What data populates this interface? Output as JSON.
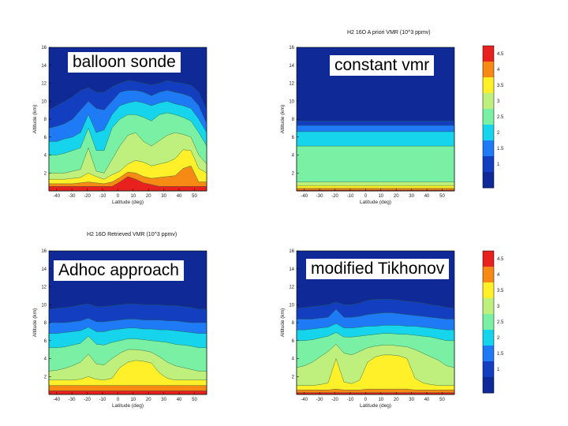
{
  "chart_data": [
    {
      "type": "heatmap",
      "id": "p1",
      "label": "balloon sonde",
      "title": "",
      "xlabel": "Latitude (deg)",
      "ylabel": "Altitude (km)",
      "xlim": [
        -45,
        58
      ],
      "ylim": [
        0,
        16
      ],
      "xticks": [
        -40,
        -30,
        -20,
        -10,
        0,
        10,
        20,
        30,
        40,
        50
      ],
      "yticks": [
        2,
        4,
        6,
        8,
        10,
        12,
        14,
        16
      ],
      "levels": [
        {
          "name": "4.5",
          "alt": [
            0.5,
            0.5,
            0.5,
            0.5,
            0.5,
            0.5,
            0.5,
            0.5,
            0.5,
            1.0,
            1.6,
            1.3,
            0.9,
            0.7,
            0.5,
            0.5,
            0.5,
            0.5,
            0.5,
            0.5,
            0.5
          ]
        },
        {
          "name": "4",
          "alt": [
            0.8,
            0.8,
            0.8,
            0.8,
            0.9,
            1.0,
            0.9,
            0.8,
            1.0,
            1.5,
            2.1,
            2.0,
            1.6,
            1.4,
            1.5,
            1.6,
            1.7,
            2.5,
            2.8,
            1.0,
            1.0
          ]
        },
        {
          "name": "3.5",
          "alt": [
            1.3,
            1.3,
            1.3,
            1.4,
            1.5,
            2.0,
            1.6,
            1.3,
            1.8,
            2.2,
            3.0,
            3.4,
            3.2,
            2.8,
            3.0,
            3.2,
            3.6,
            4.6,
            4.5,
            2.5,
            2.0
          ]
        },
        {
          "name": "3",
          "alt": [
            2.0,
            2.0,
            2.0,
            2.2,
            2.4,
            4.8,
            2.2,
            2.0,
            3.5,
            5.0,
            6.2,
            6.5,
            5.5,
            5.0,
            5.6,
            6.2,
            6.5,
            6.3,
            6.0,
            4.0,
            3.0
          ]
        },
        {
          "name": "2.5",
          "alt": [
            4.0,
            4.0,
            4.2,
            4.5,
            4.8,
            7.0,
            4.5,
            4.5,
            7.0,
            8.0,
            8.5,
            8.5,
            8.2,
            7.8,
            8.5,
            8.7,
            8.5,
            8.2,
            7.8,
            6.5,
            5.0
          ]
        },
        {
          "name": "2",
          "alt": [
            5.5,
            5.5,
            5.8,
            6.0,
            6.5,
            8.5,
            6.5,
            6.8,
            8.5,
            9.5,
            9.8,
            10.0,
            9.8,
            9.5,
            9.8,
            10.0,
            9.7,
            9.5,
            9.2,
            8.0,
            6.5
          ]
        },
        {
          "name": "1.5",
          "alt": [
            7.0,
            7.2,
            7.5,
            8.0,
            9.0,
            10.0,
            9.2,
            9.0,
            10.0,
            11.0,
            11.2,
            11.2,
            11.0,
            10.6,
            11.0,
            11.2,
            11.0,
            10.8,
            10.5,
            9.5,
            7.5
          ]
        },
        {
          "name": "1",
          "alt": [
            9.0,
            9.5,
            10.0,
            10.5,
            11.2,
            11.5,
            11.0,
            11.0,
            11.6,
            12.0,
            12.3,
            12.2,
            12.0,
            11.8,
            12.0,
            12.3,
            12.1,
            12.0,
            11.8,
            11.0,
            9.0
          ]
        }
      ]
    },
    {
      "type": "heatmap",
      "id": "p2",
      "label": "constant vmr",
      "title": "H2 16O A priori VMR (10^3 ppmv)",
      "xlabel": "Latitude (deg)",
      "ylabel": "Altitude (km)",
      "xlim": [
        -45,
        58
      ],
      "ylim": [
        0,
        16
      ],
      "xticks": [
        -40,
        -30,
        -20,
        -10,
        0,
        10,
        20,
        30,
        40,
        50
      ],
      "yticks": [
        2,
        4,
        6,
        8,
        10,
        12,
        14,
        16
      ],
      "colorbar": {
        "ticks": [
          "4.5",
          "4",
          "3.5",
          "3",
          "2.5",
          "2",
          "1.5",
          "1"
        ],
        "colors": [
          "#e8201e",
          "#f78a14",
          "#fff02a",
          "#bff07e",
          "#7af0a4",
          "#16d4ec",
          "#1f7bf5",
          "#143ec0",
          "#0f2a96"
        ]
      },
      "levels": [
        {
          "name": "4.5",
          "alt": [
            0.1,
            0.1,
            0.1,
            0.1,
            0.1,
            0.1,
            0.1,
            0.1,
            0.1,
            0.1,
            0.1,
            0.1,
            0.1,
            0.1,
            0.1,
            0.1,
            0.1,
            0.1,
            0.1,
            0.1,
            0.1
          ]
        },
        {
          "name": "4",
          "alt": [
            0.3,
            0.3,
            0.3,
            0.3,
            0.3,
            0.3,
            0.3,
            0.3,
            0.3,
            0.3,
            0.3,
            0.3,
            0.3,
            0.3,
            0.3,
            0.3,
            0.3,
            0.3,
            0.3,
            0.3,
            0.3
          ]
        },
        {
          "name": "3.5",
          "alt": [
            0.6,
            0.6,
            0.6,
            0.6,
            0.6,
            0.6,
            0.6,
            0.6,
            0.6,
            0.6,
            0.6,
            0.6,
            0.6,
            0.6,
            0.6,
            0.6,
            0.6,
            0.6,
            0.6,
            0.6,
            0.6
          ]
        },
        {
          "name": "3",
          "alt": [
            1.0,
            1.0,
            1.0,
            1.0,
            1.0,
            1.0,
            1.0,
            1.0,
            1.0,
            1.0,
            1.0,
            1.0,
            1.0,
            1.0,
            1.0,
            1.0,
            1.0,
            1.0,
            1.0,
            1.0,
            1.0
          ]
        },
        {
          "name": "2.5",
          "alt": [
            5.0,
            5.0,
            5.0,
            5.0,
            5.0,
            5.0,
            5.0,
            5.0,
            5.0,
            5.0,
            5.0,
            5.0,
            5.0,
            5.0,
            5.0,
            5.0,
            5.0,
            5.0,
            5.0,
            5.0,
            5.0
          ]
        },
        {
          "name": "2",
          "alt": [
            6.6,
            6.6,
            6.6,
            6.6,
            6.6,
            6.6,
            6.6,
            6.6,
            6.6,
            6.6,
            6.6,
            6.6,
            6.6,
            6.6,
            6.6,
            6.6,
            6.6,
            6.6,
            6.6,
            6.6,
            6.6
          ]
        },
        {
          "name": "1.5",
          "alt": [
            7.3,
            7.3,
            7.3,
            7.3,
            7.3,
            7.3,
            7.3,
            7.3,
            7.3,
            7.3,
            7.3,
            7.3,
            7.3,
            7.3,
            7.3,
            7.3,
            7.3,
            7.3,
            7.3,
            7.3,
            7.3
          ]
        },
        {
          "name": "1",
          "alt": [
            7.8,
            7.8,
            7.8,
            7.8,
            7.8,
            7.8,
            7.8,
            7.8,
            7.8,
            7.8,
            7.8,
            7.8,
            7.8,
            7.8,
            7.8,
            7.8,
            7.8,
            7.8,
            7.8,
            7.8,
            7.8
          ]
        }
      ]
    },
    {
      "type": "heatmap",
      "id": "p3",
      "label": "Adhoc approach",
      "title": "H2 16O Retrieved VMR (10^3 ppmv)",
      "xlabel": "Latitude (deg)",
      "ylabel": "Altitude (km)",
      "xlim": [
        -45,
        58
      ],
      "ylim": [
        0,
        16
      ],
      "xticks": [
        -40,
        -30,
        -20,
        -10,
        0,
        10,
        20,
        30,
        40,
        50
      ],
      "yticks": [
        2,
        4,
        6,
        8,
        10,
        12,
        14,
        16
      ],
      "levels": [
        {
          "name": "4.5",
          "alt": [
            0.4,
            0.4,
            0.4,
            0.4,
            0.4,
            0.4,
            0.4,
            0.4,
            0.4,
            0.4,
            0.4,
            0.4,
            0.4,
            0.4,
            0.4,
            0.4,
            0.4,
            0.4,
            0.4,
            0.4,
            0.4
          ]
        },
        {
          "name": "4",
          "alt": [
            1.0,
            1.0,
            1.0,
            1.0,
            1.0,
            1.0,
            1.0,
            1.0,
            1.0,
            1.0,
            1.0,
            1.0,
            1.0,
            1.0,
            1.0,
            1.0,
            1.0,
            1.0,
            1.0,
            1.0,
            1.0
          ]
        },
        {
          "name": "3.5",
          "alt": [
            1.6,
            1.6,
            1.6,
            1.6,
            1.7,
            2.0,
            1.7,
            1.6,
            1.8,
            3.0,
            3.6,
            3.8,
            3.7,
            3.5,
            2.4,
            1.8,
            1.6,
            1.6,
            1.6,
            1.6,
            1.6
          ]
        },
        {
          "name": "3",
          "alt": [
            2.6,
            2.7,
            2.9,
            3.2,
            3.6,
            4.5,
            3.4,
            3.3,
            4.0,
            4.6,
            5.0,
            5.0,
            4.9,
            4.7,
            4.2,
            3.6,
            3.2,
            3.0,
            2.8,
            2.6,
            2.6
          ]
        },
        {
          "name": "2.5",
          "alt": [
            5.2,
            5.2,
            5.3,
            5.5,
            5.7,
            6.5,
            5.6,
            5.5,
            5.8,
            6.0,
            6.2,
            6.2,
            6.1,
            6.0,
            5.9,
            5.8,
            5.6,
            5.5,
            5.4,
            5.2,
            5.2
          ]
        },
        {
          "name": "2",
          "alt": [
            6.8,
            6.8,
            6.9,
            7.0,
            7.1,
            7.5,
            7.0,
            7.0,
            7.2,
            7.3,
            7.4,
            7.4,
            7.3,
            7.3,
            7.2,
            7.2,
            7.1,
            7.0,
            6.9,
            6.8,
            6.8
          ]
        },
        {
          "name": "1.5",
          "alt": [
            8.0,
            8.0,
            8.0,
            8.1,
            8.2,
            8.5,
            8.1,
            8.1,
            8.2,
            8.3,
            8.4,
            8.4,
            8.3,
            8.3,
            8.3,
            8.2,
            8.2,
            8.1,
            8.0,
            8.0,
            8.0
          ]
        },
        {
          "name": "1",
          "alt": [
            9.5,
            9.6,
            9.7,
            9.8,
            10.0,
            10.1,
            9.8,
            9.8,
            9.9,
            10.0,
            10.1,
            10.1,
            10.0,
            10.0,
            10.0,
            9.9,
            9.9,
            9.8,
            9.7,
            9.5,
            9.5
          ]
        }
      ]
    },
    {
      "type": "heatmap",
      "id": "p4",
      "label": "modified Tikhonov",
      "title": "",
      "xlabel": "Latitude (deg)",
      "ylabel": "Altitude (km)",
      "xlim": [
        -45,
        58
      ],
      "ylim": [
        0,
        16
      ],
      "xticks": [
        -40,
        -30,
        -20,
        -10,
        0,
        10,
        20,
        30,
        40,
        50
      ],
      "yticks": [
        2,
        4,
        6,
        8,
        10,
        12,
        14,
        16
      ],
      "colorbar": {
        "ticks": [
          "4.5",
          "4",
          "3.5",
          "3",
          "2.5",
          "2",
          "1.5",
          "1"
        ],
        "colors": [
          "#e8201e",
          "#f78a14",
          "#fff02a",
          "#bff07e",
          "#7af0a4",
          "#16d4ec",
          "#1f7bf5",
          "#143ec0",
          "#0f2a96"
        ]
      },
      "levels": [
        {
          "name": "4.5",
          "alt": [
            0.2,
            0.2,
            0.2,
            0.2,
            0.2,
            0.2,
            0.2,
            0.2,
            0.2,
            0.2,
            0.2,
            0.2,
            0.2,
            0.2,
            0.2,
            0.2,
            0.2,
            0.2,
            0.2,
            0.2,
            0.2
          ]
        },
        {
          "name": "4",
          "alt": [
            0.5,
            0.5,
            0.5,
            0.5,
            0.5,
            0.6,
            0.5,
            0.5,
            0.5,
            0.6,
            0.6,
            0.6,
            0.6,
            0.6,
            0.6,
            0.5,
            0.5,
            0.5,
            0.5,
            0.5,
            0.5
          ]
        },
        {
          "name": "3.5",
          "alt": [
            1.0,
            1.0,
            1.0,
            1.1,
            1.3,
            4.0,
            1.4,
            1.2,
            1.6,
            3.6,
            4.2,
            4.4,
            4.4,
            4.3,
            4.0,
            1.8,
            1.3,
            1.1,
            1.0,
            1.0,
            1.0
          ]
        },
        {
          "name": "3",
          "alt": [
            3.0,
            3.2,
            3.6,
            4.2,
            4.8,
            5.6,
            4.6,
            4.4,
            4.8,
            5.2,
            5.4,
            5.5,
            5.5,
            5.4,
            5.3,
            5.0,
            4.6,
            4.2,
            3.8,
            3.2,
            3.0
          ]
        },
        {
          "name": "2.5",
          "alt": [
            6.0,
            6.0,
            6.1,
            6.3,
            6.5,
            6.9,
            6.4,
            6.4,
            6.5,
            6.6,
            6.7,
            6.8,
            6.8,
            6.7,
            6.7,
            6.6,
            6.5,
            6.4,
            6.2,
            6.0,
            6.0
          ]
        },
        {
          "name": "2",
          "alt": [
            7.2,
            7.2,
            7.3,
            7.4,
            7.5,
            7.9,
            7.4,
            7.4,
            7.5,
            7.6,
            7.6,
            7.7,
            7.7,
            7.7,
            7.6,
            7.6,
            7.5,
            7.4,
            7.3,
            7.2,
            7.2
          ]
        },
        {
          "name": "1.5",
          "alt": [
            8.4,
            8.4,
            8.4,
            8.5,
            8.6,
            9.5,
            8.6,
            8.6,
            8.7,
            8.9,
            9.0,
            9.1,
            9.1,
            9.0,
            8.9,
            8.8,
            8.7,
            8.6,
            8.5,
            8.4,
            8.4
          ]
        },
        {
          "name": "1",
          "alt": [
            9.6,
            9.7,
            9.8,
            9.9,
            10.0,
            10.3,
            10.0,
            10.0,
            10.2,
            10.5,
            10.6,
            10.6,
            10.6,
            10.5,
            10.4,
            10.3,
            10.2,
            10.0,
            9.9,
            9.7,
            9.6
          ]
        }
      ]
    }
  ],
  "level_colors": [
    "#e8201e",
    "#f78a14",
    "#fff02a",
    "#bff07e",
    "#7af0a4",
    "#16d4ec",
    "#1f7bf5",
    "#143ec0",
    "#0f2a96"
  ]
}
